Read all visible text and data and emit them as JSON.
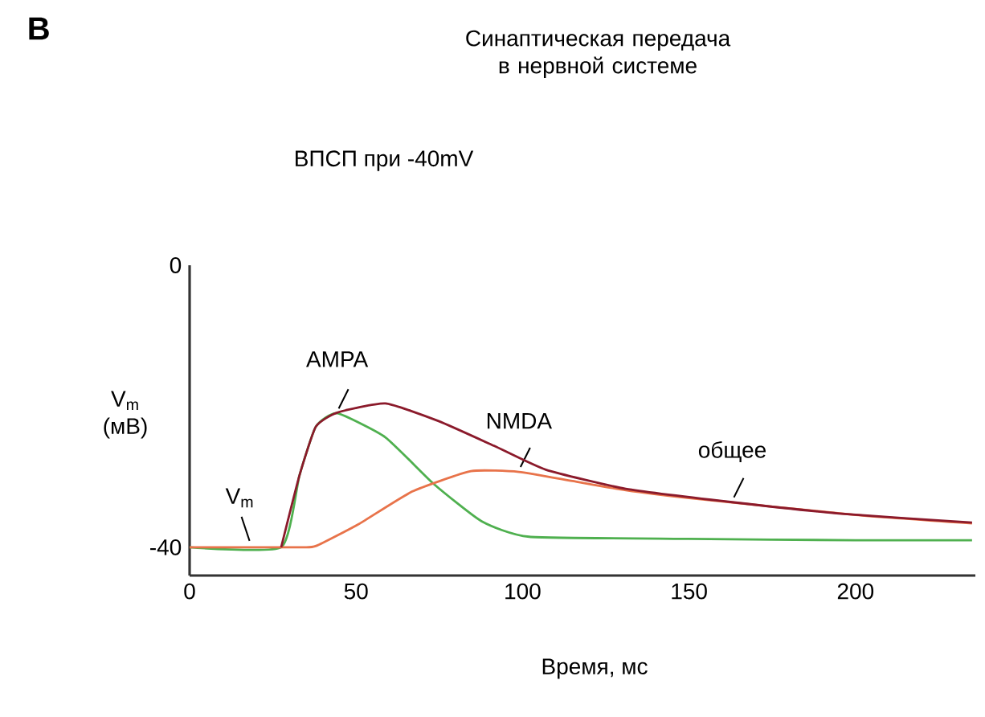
{
  "chart_data": {
    "type": "line",
    "title": "Синаптическая передача в нервной системе",
    "subtitle": "ВПСП при -40mV",
    "xlabel": "Время, мс",
    "ylabel": "V$_{m}$ (мВ)",
    "xlim": [
      0,
      236
    ],
    "ylim": [
      -44,
      0
    ],
    "xticks": [
      0,
      50,
      100,
      150,
      200
    ],
    "yticks": [
      -40,
      0
    ],
    "grid": false,
    "legend": false,
    "marker": "none",
    "line_style": "solid",
    "annotations": [
      "B",
      {
        "text": "V$_{m}$",
        "x": 18,
        "y": -40
      }
    ],
    "series": [
      {
        "name": "AMPA",
        "color": "#4fb04f",
        "x": [
          0,
          27.5,
          33,
          37.9,
          44.3,
          58.8,
          73.3,
          87.7,
          102,
          150,
          200,
          235
        ],
        "values": [
          -40,
          -40,
          -29.8,
          -22.9,
          -21,
          -24.4,
          -31,
          -36.3,
          -38.5,
          -38.8,
          -39,
          -39
        ]
      },
      {
        "name": "NMDA",
        "color": "#e8734a",
        "x": [
          0,
          33,
          38,
          50.8,
          66.8,
          84.5,
          98.9,
          115,
          131,
          150,
          200,
          235
        ],
        "values": [
          -40,
          -40,
          -39.8,
          -36.7,
          -32.1,
          -29.2,
          -29.3,
          -30.6,
          -31.9,
          -33,
          -35.4,
          -36.6
        ]
      },
      {
        "name": "общее",
        "color": "#8b1a2b",
        "x": [
          27.5,
          33,
          37.9,
          44.3,
          58.8,
          74.8,
          91.4,
          107,
          131,
          163,
          195,
          235
        ],
        "values": [
          -40,
          -29.8,
          -22.9,
          -20.9,
          -19.6,
          -22.1,
          -25.6,
          -29,
          -31.7,
          -33.6,
          -35.2,
          -36.5
        ]
      }
    ]
  }
}
